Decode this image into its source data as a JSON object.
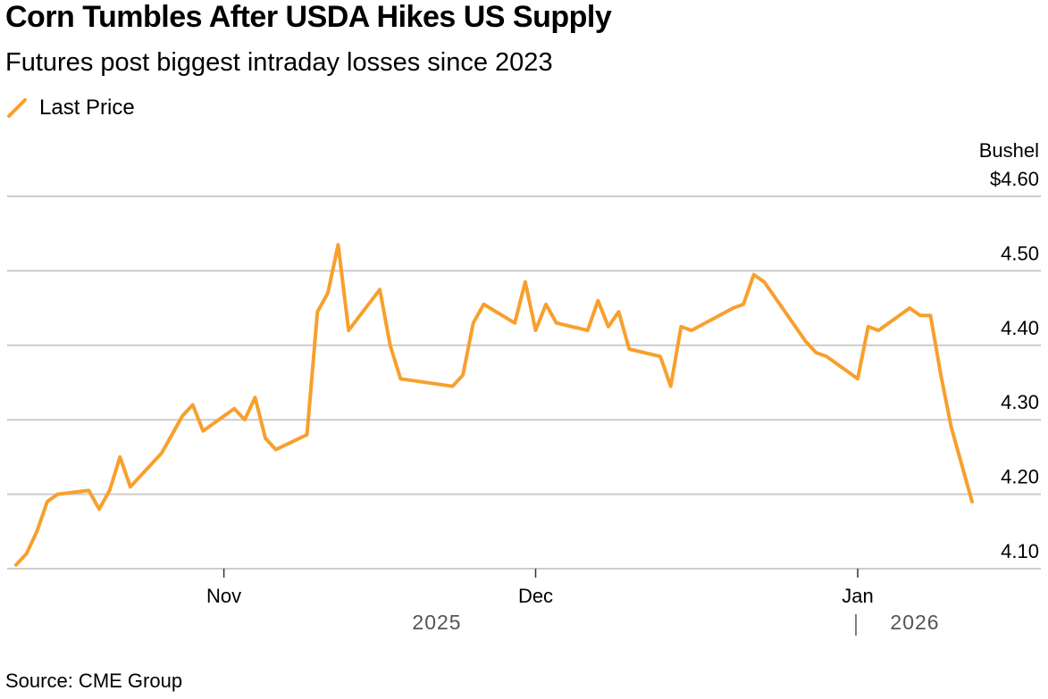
{
  "title": "Corn Tumbles After USDA Hikes US Supply",
  "subtitle": "Futures post biggest intraday losses since 2023",
  "source": "Source: CME Group",
  "chart_data": {
    "type": "line",
    "unit_label": "Bushel",
    "y_ticks": [
      "$4.60",
      "4.50",
      "4.40",
      "4.30",
      "4.20",
      "4.10"
    ],
    "y_tick_values": [
      4.6,
      4.5,
      4.4,
      4.3,
      4.2,
      4.1
    ],
    "ylim": [
      4.1,
      4.6
    ],
    "x_tick_labels": [
      "Nov",
      "Dec",
      "Jan"
    ],
    "x_tick_dates": [
      "2025-11-01",
      "2025-12-01",
      "2026-01-01"
    ],
    "year_labels": [
      "2025",
      "2026"
    ],
    "grid": true,
    "legend_position": "top-left",
    "series": [
      {
        "name": "Last Price",
        "color": "#f7a02d",
        "x": [
          "2025-10-12",
          "2025-10-13",
          "2025-10-14",
          "2025-10-15",
          "2025-10-16",
          "2025-10-19",
          "2025-10-20",
          "2025-10-21",
          "2025-10-22",
          "2025-10-23",
          "2025-10-26",
          "2025-10-27",
          "2025-10-28",
          "2025-10-29",
          "2025-10-30",
          "2025-11-02",
          "2025-11-03",
          "2025-11-04",
          "2025-11-05",
          "2025-11-06",
          "2025-11-09",
          "2025-11-10",
          "2025-11-11",
          "2025-11-12",
          "2025-11-13",
          "2025-11-16",
          "2025-11-17",
          "2025-11-18",
          "2025-11-23",
          "2025-11-24",
          "2025-11-25",
          "2025-11-26",
          "2025-11-29",
          "2025-11-30",
          "2025-12-01",
          "2025-12-02",
          "2025-12-03",
          "2025-12-06",
          "2025-12-07",
          "2025-12-08",
          "2025-12-09",
          "2025-12-10",
          "2025-12-13",
          "2025-12-14",
          "2025-12-15",
          "2025-12-16",
          "2025-12-20",
          "2025-12-21",
          "2025-12-22",
          "2025-12-23",
          "2025-12-27",
          "2025-12-28",
          "2025-12-29",
          "2026-01-01",
          "2026-01-02",
          "2026-01-03",
          "2026-01-06",
          "2026-01-07",
          "2026-01-08",
          "2026-01-09",
          "2026-01-10",
          "2026-01-12"
        ],
        "values": [
          4.105,
          4.12,
          4.15,
          4.19,
          4.2,
          4.205,
          4.18,
          4.205,
          4.25,
          4.21,
          4.255,
          4.28,
          4.305,
          4.32,
          4.285,
          4.315,
          4.3,
          4.33,
          4.275,
          4.26,
          4.28,
          4.445,
          4.47,
          4.535,
          4.42,
          4.475,
          4.4,
          4.355,
          4.345,
          4.36,
          4.43,
          4.455,
          4.43,
          4.485,
          4.42,
          4.455,
          4.43,
          4.42,
          4.46,
          4.425,
          4.445,
          4.395,
          4.385,
          4.345,
          4.425,
          4.42,
          4.45,
          4.455,
          4.495,
          4.485,
          4.405,
          4.39,
          4.385,
          4.355,
          4.425,
          4.42,
          4.45,
          4.44,
          4.44,
          4.36,
          4.29,
          4.19
        ]
      }
    ]
  }
}
